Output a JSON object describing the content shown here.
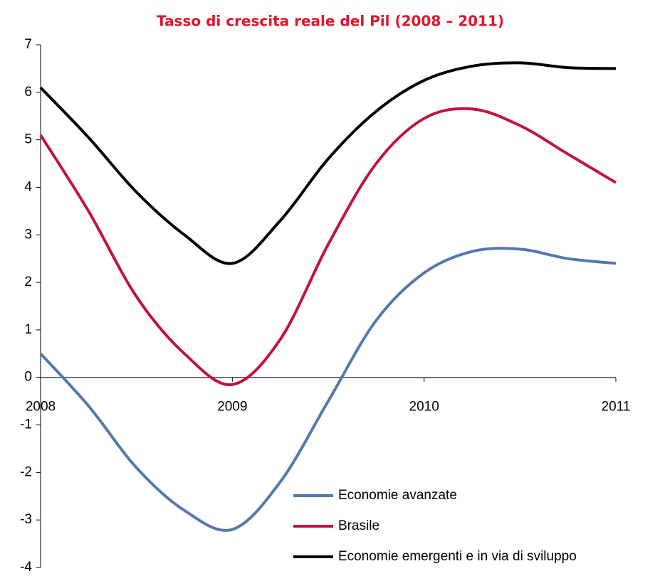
{
  "chart_data": {
    "type": "line",
    "title": "Tasso di crescita reale del Pil (2008 – 2011)",
    "x": [
      2008,
      2008.25,
      2008.5,
      2008.75,
      2009,
      2009.25,
      2009.5,
      2009.75,
      2010,
      2010.25,
      2010.5,
      2010.75,
      2011
    ],
    "series": [
      {
        "name": "Economie avanzate",
        "color": "#5479aa",
        "values": [
          0.5,
          -0.6,
          -1.9,
          -2.8,
          -3.2,
          -2.2,
          -0.5,
          1.2,
          2.2,
          2.65,
          2.7,
          2.5,
          2.4
        ]
      },
      {
        "name": "Brasile",
        "color": "#c0143c",
        "values": [
          5.1,
          3.5,
          1.7,
          0.5,
          -0.15,
          0.8,
          2.8,
          4.5,
          5.45,
          5.65,
          5.3,
          4.7,
          4.1
        ]
      },
      {
        "name": "Economie emergenti e in via di sviluppo",
        "color": "#000000",
        "values": [
          6.1,
          5.05,
          3.9,
          3.0,
          2.4,
          3.3,
          4.6,
          5.6,
          6.25,
          6.55,
          6.62,
          6.52,
          6.5
        ]
      }
    ],
    "xlim": [
      2008,
      2011
    ],
    "xticks": [
      2008,
      2009,
      2010,
      2011
    ],
    "ylim": [
      -4,
      7
    ],
    "yticks": [
      -4,
      -3,
      -2,
      -1,
      0,
      1,
      2,
      3,
      4,
      5,
      6,
      7
    ],
    "legend": "lower right"
  }
}
